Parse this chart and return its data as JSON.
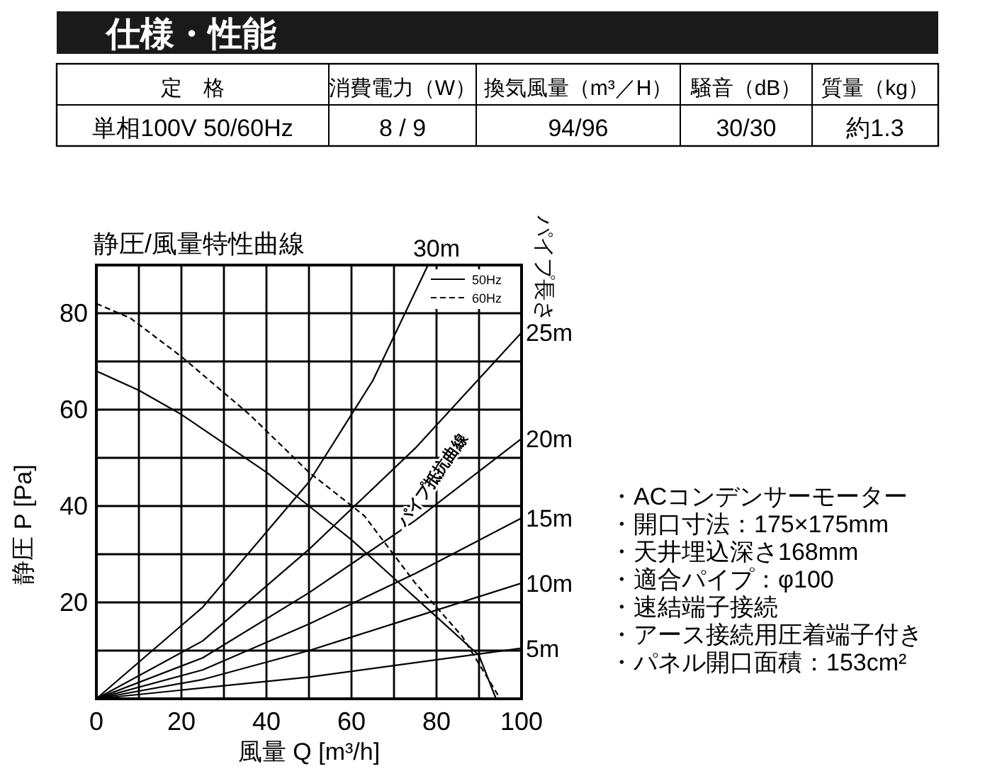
{
  "chart_data": {
    "type": "line",
    "title": "静圧/風量特性曲線",
    "xlabel": "風量 Q [m³/h]",
    "ylabel": "静圧 P [Pa]",
    "xlim": [
      0,
      100
    ],
    "ylim": [
      0,
      90
    ],
    "xticks": [
      0,
      {
        "value": 10,
        "label": null
      },
      20,
      {
        "value": 30,
        "label": null
      },
      40,
      {
        "value": 50,
        "label": null
      },
      60,
      {
        "value": 70,
        "label": null
      },
      80,
      {
        "value": 90,
        "label": null
      },
      100
    ],
    "yticks": [
      {
        "value": 0,
        "label": null
      },
      {
        "value": 10,
        "label": null
      },
      20,
      {
        "value": 30,
        "label": null
      },
      40,
      {
        "value": 50,
        "label": null
      },
      60,
      {
        "value": 70,
        "label": null
      },
      80,
      {
        "value": 90,
        "label": null
      }
    ],
    "grid": true,
    "legend": "top right",
    "marker": "none",
    "series": [
      {
        "name": "50Hz",
        "color": "#000000",
        "line_style": "solid",
        "x": [
          0,
          10,
          20,
          30,
          40,
          50,
          60,
          70,
          80,
          90,
          94
        ],
        "values": [
          68,
          64,
          59,
          53,
          47,
          40,
          33,
          25,
          17,
          9,
          0
        ]
      },
      {
        "name": "60Hz",
        "color": "#000000",
        "line_style": "dashed",
        "x": [
          0,
          8,
          20,
          36,
          50,
          63,
          75,
          86,
          95
        ],
        "values": [
          82,
          79,
          71,
          59,
          47,
          38,
          24,
          13,
          0
        ]
      },
      {
        "name": "5m",
        "color": "#000000",
        "line_style": "solid",
        "x": [
          0,
          50,
          100
        ],
        "values": [
          0,
          4.5,
          10.5
        ]
      },
      {
        "name": "10m",
        "color": "#000000",
        "line_style": "solid",
        "x": [
          0,
          25,
          50,
          75,
          100
        ],
        "values": [
          0,
          4,
          10,
          17,
          24
        ]
      },
      {
        "name": "15m",
        "color": "#000000",
        "line_style": "solid",
        "x": [
          0,
          25,
          50,
          75,
          100
        ],
        "values": [
          0,
          6,
          15.5,
          26,
          37.5
        ]
      },
      {
        "name": "20m",
        "color": "#000000",
        "line_style": "solid",
        "x": [
          0,
          25,
          50,
          75,
          100
        ],
        "values": [
          0,
          8.5,
          22,
          37,
          54
        ]
      },
      {
        "name": "25m",
        "color": "#000000",
        "line_style": "solid",
        "x": [
          0,
          25,
          50,
          75,
          100
        ],
        "values": [
          0,
          12,
          31,
          52,
          76
        ]
      },
      {
        "name": "30m",
        "color": "#000000",
        "line_style": "solid",
        "x": [
          0,
          25,
          50,
          65,
          78
        ],
        "values": [
          0,
          19,
          45,
          66,
          90
        ]
      }
    ],
    "annotations": [
      "仕様・性能",
      "定　格",
      "消費電力（W）",
      "換気風量（m³／H）",
      "騒音（dB）",
      "質量（kg）",
      "単相100V 50/60Hz",
      "8 / 9",
      "94/96",
      "30/30",
      "約1.3",
      "・ACコンデンサーモーター",
      "・開口寸法：175×175mm",
      "・天井埋込深さ168mm",
      "・適合パイプ：φ100",
      "・速結端子接続",
      "・アース接続用圧着端子付き",
      "・パネル開口面積：153cm²",
      "パイプ長さ",
      "パイプ抵抗曲線"
    ]
  }
}
